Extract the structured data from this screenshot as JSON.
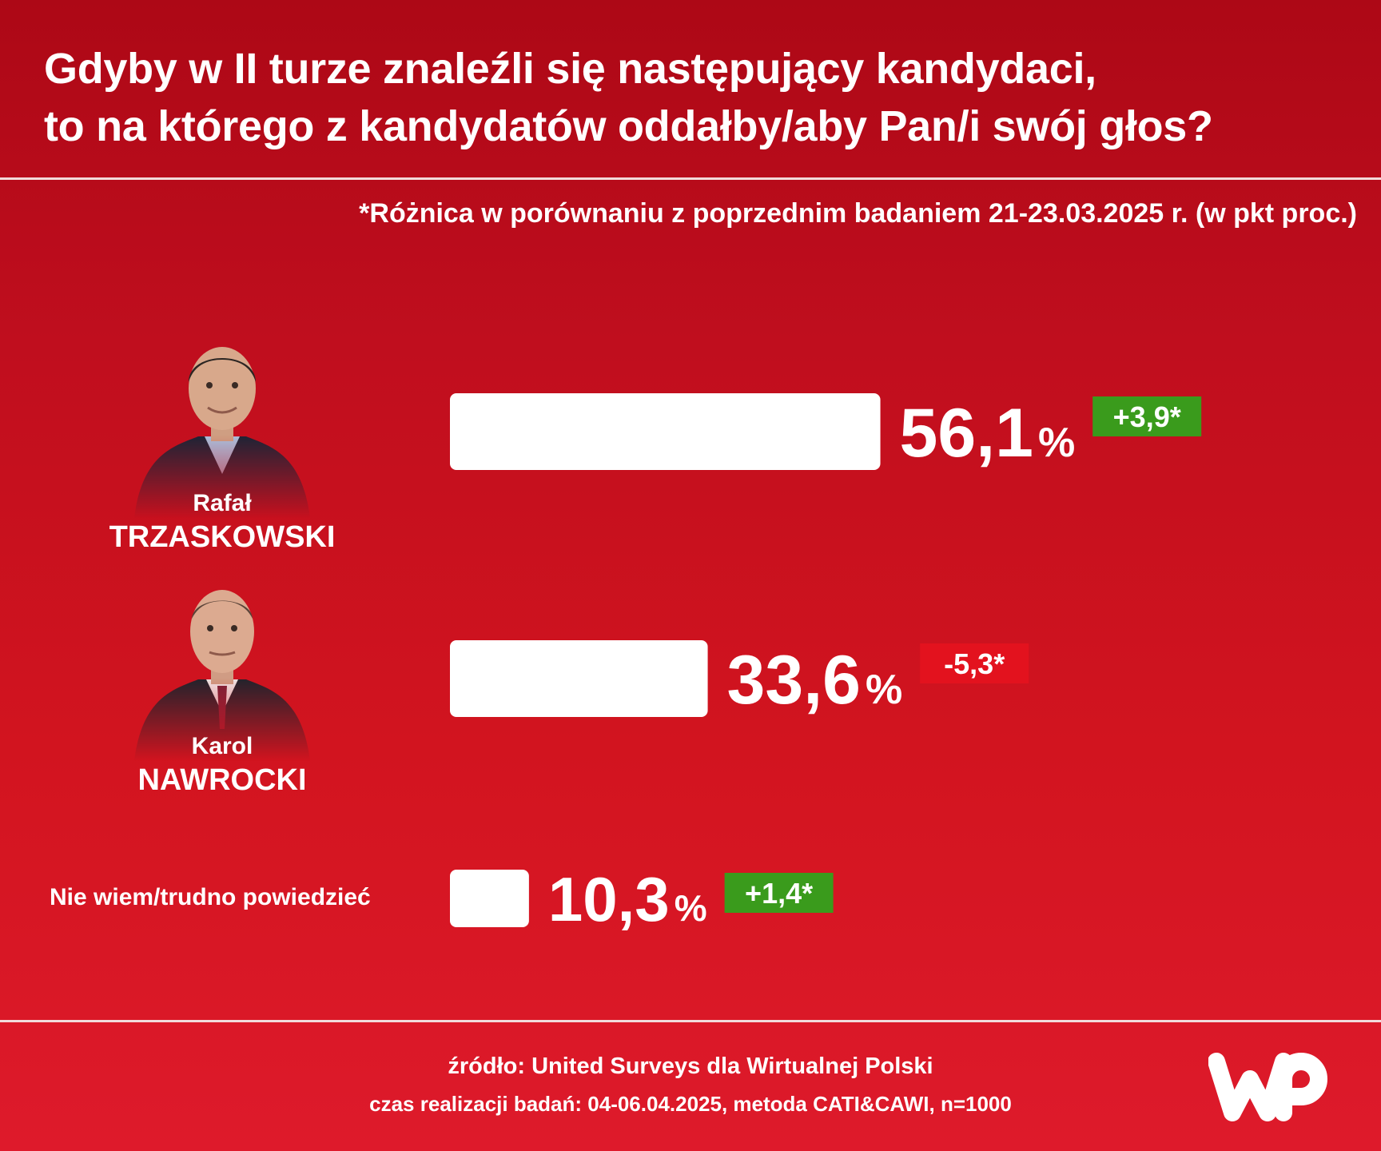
{
  "title_lines": [
    "Gdyby w II turze znaleźli się następujący kandydaci,",
    "to na którego z kandydatów oddałby/aby Pan/i swój głos?"
  ],
  "note": "*Różnica w porównaniu z poprzednim badaniem 21-23.03.2025 r. (w pkt proc.)",
  "candidates": [
    {
      "first_name": "Rafał",
      "last_name": "TRZASKOWSKI"
    },
    {
      "first_name": "Karol",
      "last_name": "NAWROCKI"
    }
  ],
  "chart_data": {
    "type": "bar",
    "orientation": "horizontal",
    "title": "Gdyby w II turze znaleźli się następujący kandydaci, to na którego z kandydatów oddałby/aby Pan/i swój głos?",
    "categories": [
      "Rafał TRZASKOWSKI",
      "Karol NAWROCKI",
      "Nie wiem/trudno powiedzieć"
    ],
    "values": [
      56.1,
      33.6,
      10.3
    ],
    "value_labels": [
      "56,1",
      "33,6",
      "10,3"
    ],
    "unit": "%",
    "changes": [
      3.9,
      -5.3,
      1.4
    ],
    "change_labels": [
      "+3,9*",
      "-5,3*",
      "+1,4*"
    ],
    "xlim": [
      0,
      100
    ],
    "grid": false,
    "bar_color": "#ffffff"
  },
  "undecided_label": "Nie wiem/trudno powiedzieć",
  "footer": {
    "source": "źródło: United Surveys dla Wirtualnej Polski",
    "meta": "czas realizacji badań: 04-06.04.2025, metoda CATI&CAWI, n=1000"
  },
  "logo_text": "WP",
  "colors": {
    "positive": "#3a9b1c",
    "negative": "#e3121e",
    "bar": "#ffffff"
  }
}
